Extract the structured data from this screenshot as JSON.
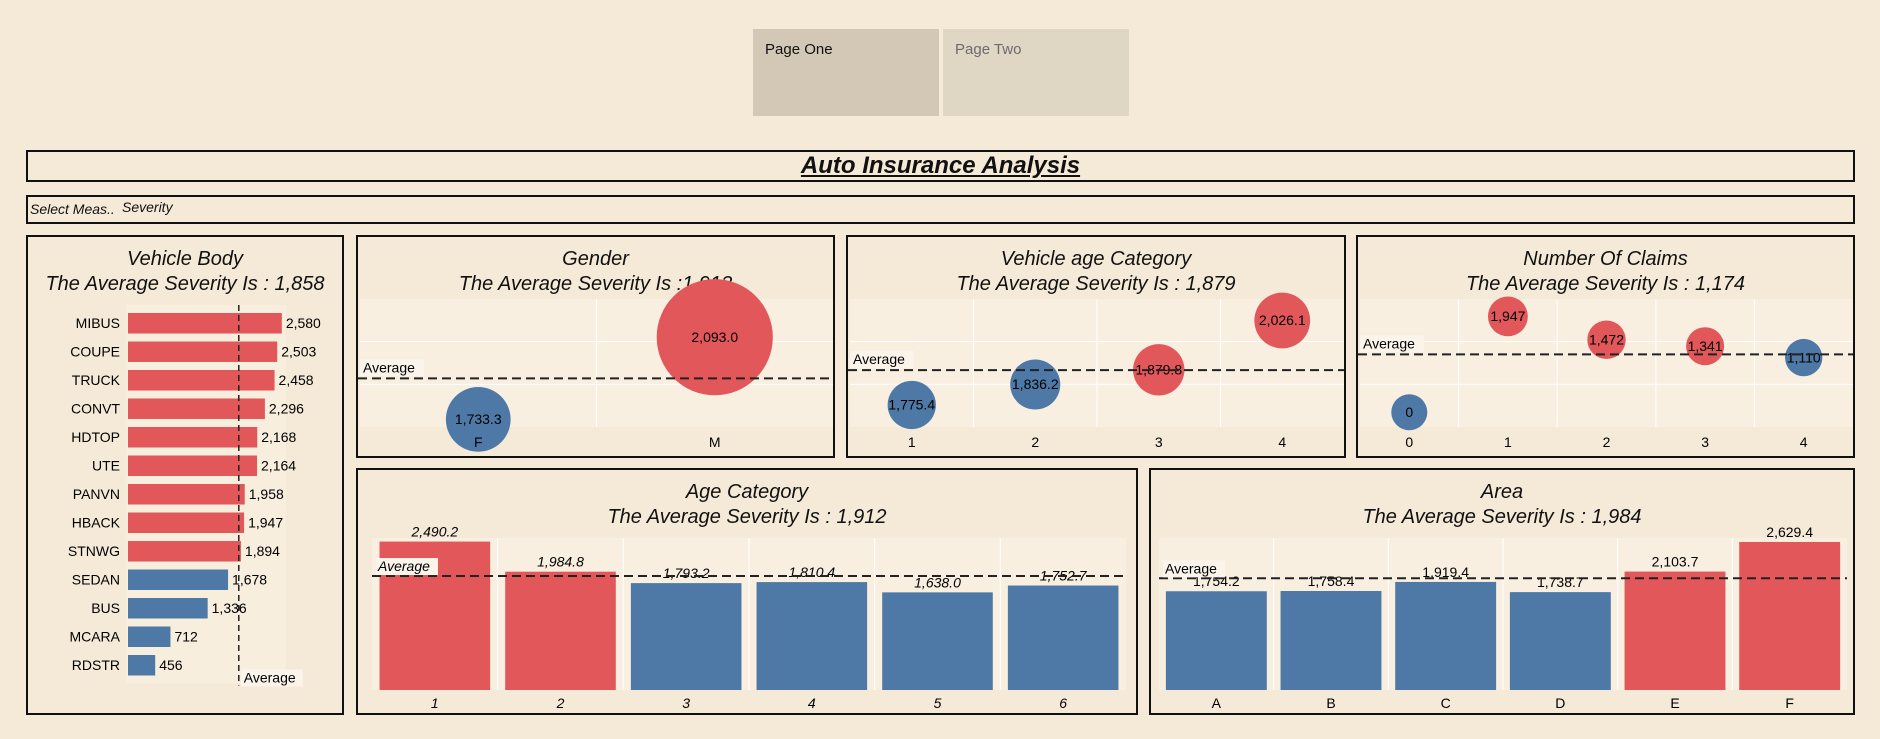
{
  "tabs": [
    {
      "label": "Page One"
    },
    {
      "label": "Page Two"
    }
  ],
  "dashboard": {
    "title": "Auto Insurance Analysis",
    "measure_label": "Select Meas..",
    "measure_value": "Severity"
  },
  "colors": {
    "above": "#e1575a",
    "below": "#4e79a7",
    "background": "#f5ead8"
  },
  "chart_data": [
    {
      "type": "bar",
      "orientation": "horizontal",
      "title": "Vehicle Body",
      "subtitle": "The Average Severity Is : 1,858",
      "average": 1858,
      "average_label": "Average",
      "categories": [
        "MIBUS",
        "COUPE",
        "TRUCK",
        "CONVT",
        "HDTOP",
        "UTE",
        "PANVN",
        "HBACK",
        "STNWG",
        "SEDAN",
        "BUS",
        "MCARA",
        "RDSTR"
      ],
      "values": [
        2580,
        2503,
        2458,
        2296,
        2168,
        2164,
        1958,
        1947,
        1894,
        1678,
        1336,
        712,
        456
      ],
      "data_labels": [
        "2,580",
        "2,503",
        "2,458",
        "2,296",
        "2,168",
        "2,164",
        "1,958",
        "1,947",
        "1,894",
        "1,678",
        "1,336",
        "712",
        "456"
      ],
      "xlim": [
        0,
        2650
      ]
    },
    {
      "type": "scatter",
      "title": "Gender",
      "subtitle": "The Average Severity Is :1,913",
      "average": 1913,
      "average_label": "Average",
      "categories": [
        "F",
        "M"
      ],
      "values": [
        1733.3,
        2093.0
      ],
      "data_labels": [
        "1,733.3",
        "2,093.0"
      ],
      "ylim": [
        1700,
        2260
      ]
    },
    {
      "type": "scatter",
      "title": "Vehicle age Category",
      "subtitle": "The Average Severity Is : 1,879",
      "average": 1879,
      "average_label": "Average",
      "categories": [
        "1",
        "2",
        "3",
        "4"
      ],
      "values": [
        1775.4,
        1836.2,
        1879.8,
        2026.1
      ],
      "data_labels": [
        "1,775.4",
        "1,836.2",
        "1,879.8",
        "2,026.1"
      ],
      "ylim": [
        1710,
        2090
      ]
    },
    {
      "type": "scatter",
      "title": "Number Of Claims",
      "subtitle": "The Average Severity Is : 1,174",
      "average": 1174,
      "average_label": "Average",
      "categories": [
        "0",
        "1",
        "2",
        "3",
        "4"
      ],
      "values": [
        0,
        1947,
        1472,
        1341,
        1110
      ],
      "data_labels": [
        "0",
        "1,947",
        "1,472",
        "1,341",
        "1,110"
      ],
      "ylim": [
        -300,
        2300
      ]
    },
    {
      "type": "bar",
      "title": "Age Category",
      "subtitle": "The Average Severity Is : 1,912",
      "average": 1912,
      "average_label": "Average",
      "categories": [
        "1",
        "2",
        "3",
        "4",
        "5",
        "6"
      ],
      "values": [
        2490.2,
        1984.8,
        1793.2,
        1810.4,
        1638.0,
        1752.7
      ],
      "data_labels": [
        "2,490.2",
        "1,984.8",
        "1,793.2",
        "1,810.4",
        "1,638.0",
        "1,752.7"
      ],
      "ylim": [
        0,
        2550
      ]
    },
    {
      "type": "bar",
      "title": "Area",
      "subtitle": "The Average Severity Is : 1,984",
      "average": 1984,
      "average_label": "Average",
      "categories": [
        "A",
        "B",
        "C",
        "D",
        "E",
        "F"
      ],
      "values": [
        1754.2,
        1758.4,
        1919.4,
        1738.7,
        2103.7,
        2629.4
      ],
      "data_labels": [
        "1,754.2",
        "1,758.4",
        "1,919.4",
        "1,738.7",
        "2,103.7",
        "2,629.4"
      ],
      "ylim": [
        0,
        2700
      ]
    }
  ]
}
